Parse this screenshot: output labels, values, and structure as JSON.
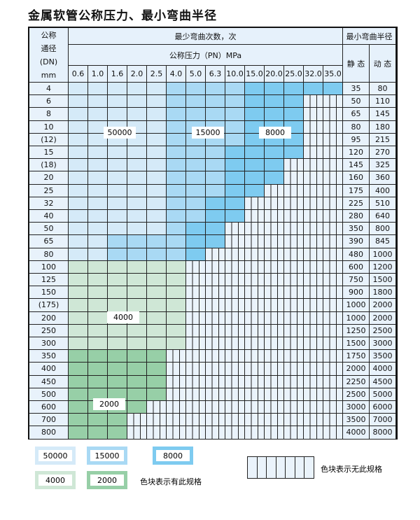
{
  "title": "金属软管公称压力、最小弯曲半径",
  "header": {
    "dn_label": "公称\n通径\n(DN)\nmm",
    "cycles_label": "最少弯曲次数，次",
    "pressure_label": "公称压力（PN）MPa",
    "radius_label": "最小弯曲半径",
    "static_label": "静 态",
    "dynamic_label": "动 态",
    "pressures": [
      "0.6",
      "1.0",
      "1.6",
      "2.0",
      "2.5",
      "4.0",
      "5.0",
      "6.3",
      "10.0",
      "15.0",
      "20.0",
      "25.0",
      "32.0",
      "35.0"
    ]
  },
  "colors": {
    "L": "#d5eaf8",
    "M": "#a9d9f4",
    "D": "#7ecbf0",
    "G": "#cfe7d6",
    "H": "#97cfa7",
    "E": "#eaf3fb"
  },
  "rows": [
    {
      "dn": "4",
      "static": "35",
      "dynamic": "80",
      "fill": "LLLLLMMMMDDDDD"
    },
    {
      "dn": "6",
      "static": "50",
      "dynamic": "110",
      "fill": "LLLLLMMMMDDDEE"
    },
    {
      "dn": "8",
      "static": "65",
      "dynamic": "145",
      "fill": "LLLLLMMMMDDDEE"
    },
    {
      "dn": "10",
      "static": "80",
      "dynamic": "180",
      "fill": "LLLLLMMMMDDDEE"
    },
    {
      "dn": "(12)",
      "static": "95",
      "dynamic": "215",
      "fill": "LLLLLMMMMDDDEE"
    },
    {
      "dn": "15",
      "static": "120",
      "dynamic": "270",
      "fill": "LLLLLMMMDDDDEE"
    },
    {
      "dn": "(18)",
      "static": "145",
      "dynamic": "325",
      "fill": "LLLLLMMMDDDEEE"
    },
    {
      "dn": "20",
      "static": "160",
      "dynamic": "360",
      "fill": "LLLLLMMMDDDEEE"
    },
    {
      "dn": "25",
      "static": "175",
      "dynamic": "400",
      "fill": "LLLLLMMMDDEEEE"
    },
    {
      "dn": "32",
      "static": "225",
      "dynamic": "510",
      "fill": "LLLLLMMDDEEEEE"
    },
    {
      "dn": "40",
      "static": "280",
      "dynamic": "640",
      "fill": "LLLLLMMDDEEEEE"
    },
    {
      "dn": "50",
      "static": "350",
      "dynamic": "800",
      "fill": "LLLLLMDDEEEEEE"
    },
    {
      "dn": "65",
      "static": "390",
      "dynamic": "845",
      "fill": "LLMMMMDDEEEEEE"
    },
    {
      "dn": "80",
      "static": "480",
      "dynamic": "1000",
      "fill": "LLMMMMDEEEEEEE"
    },
    {
      "dn": "100",
      "static": "600",
      "dynamic": "1200",
      "fill": "GGGGGGEEEEEEEE"
    },
    {
      "dn": "125",
      "static": "750",
      "dynamic": "1500",
      "fill": "GGGGGGEEEEEEEE"
    },
    {
      "dn": "150",
      "static": "900",
      "dynamic": "1800",
      "fill": "GGGGGGEEEEEEEE"
    },
    {
      "dn": "(175)",
      "static": "1000",
      "dynamic": "2000",
      "fill": "GGGGGGEEEEEEEE"
    },
    {
      "dn": "200",
      "static": "1000",
      "dynamic": "2000",
      "fill": "GGGGGGEEEEEEEE"
    },
    {
      "dn": "250",
      "static": "1250",
      "dynamic": "2500",
      "fill": "GGGGGGEEEEEEEE"
    },
    {
      "dn": "300",
      "static": "1500",
      "dynamic": "3000",
      "fill": "GGGGGGEEEEEEEE"
    },
    {
      "dn": "350",
      "static": "1750",
      "dynamic": "3500",
      "fill": "HHHHHEEEEEEEEE"
    },
    {
      "dn": "400",
      "static": "2000",
      "dynamic": "4000",
      "fill": "HHHHHEEEEEEEEE"
    },
    {
      "dn": "450",
      "static": "2250",
      "dynamic": "4500",
      "fill": "HHHHHEEEEEEEEE"
    },
    {
      "dn": "500",
      "static": "2500",
      "dynamic": "5000",
      "fill": "HHHHHEEEEEEEEE"
    },
    {
      "dn": "600",
      "static": "3000",
      "dynamic": "6000",
      "fill": "HHHHEEEEEEEEEE"
    },
    {
      "dn": "700",
      "static": "3500",
      "dynamic": "7000",
      "fill": "HHHEEEEEEEEEEE"
    },
    {
      "dn": "800",
      "static": "4000",
      "dynamic": "8000",
      "fill": "HHHEEEEEEEEEEE"
    }
  ],
  "region_labels": [
    "50000",
    "15000",
    "8000",
    "4000",
    "2000"
  ],
  "legend": {
    "items": [
      "50000",
      "15000",
      "8000",
      "4000",
      "2000"
    ],
    "has_spec": "色块表示有此规格",
    "no_spec": "色块表示无此规格"
  }
}
